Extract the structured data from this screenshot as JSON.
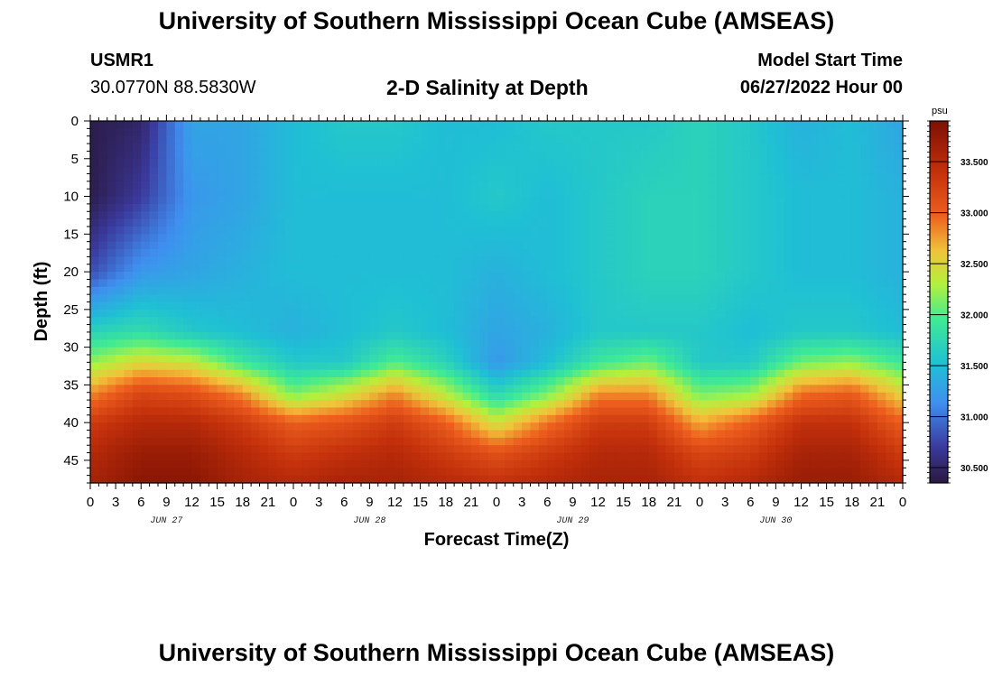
{
  "header": {
    "title": "University of Southern Mississippi Ocean Cube (AMSEAS)",
    "station_id": "USMR1",
    "coords": "30.0770N  88.5830W",
    "subtitle": "2-D Salinity at Depth",
    "model_start_label": "Model Start Time",
    "model_start_value": "06/27/2022 Hour 00"
  },
  "footer": {
    "title": "University of Southern Mississippi Ocean Cube (AMSEAS)"
  },
  "chart_data": {
    "type": "heatmap",
    "title": "2-D Salinity at Depth",
    "xlabel": "Forecast Time(Z)",
    "ylabel": "Depth (ft)",
    "x_unit": "hours",
    "xlim": [
      0,
      96
    ],
    "ylim": [
      0,
      48
    ],
    "y_inverted": true,
    "x_tick_labels": [
      "0",
      "3",
      "6",
      "9",
      "12",
      "15",
      "18",
      "21",
      "0",
      "3",
      "6",
      "9",
      "12",
      "15",
      "18",
      "21",
      "0",
      "3",
      "6",
      "9",
      "12",
      "15",
      "18",
      "21",
      "0",
      "3",
      "6",
      "9",
      "12",
      "15",
      "18",
      "21",
      "0"
    ],
    "y_ticks": [
      0,
      5,
      10,
      15,
      20,
      25,
      30,
      35,
      40,
      45
    ],
    "day_labels": [
      "JUN 27",
      "JUN 28",
      "JUN 29",
      "JUN 30"
    ],
    "colorbar": {
      "unit": "psu",
      "range": [
        30.35,
        33.9
      ],
      "ticks": [
        "30.500",
        "31.000",
        "31.500",
        "32.000",
        "32.500",
        "33.000",
        "33.500"
      ]
    },
    "grid": false,
    "times_hr": [
      0,
      6,
      12,
      18,
      24,
      30,
      36,
      42,
      48,
      54,
      60,
      66,
      72,
      78,
      84,
      90,
      96
    ],
    "depths_ft": [
      0,
      10,
      20,
      28,
      32,
      36,
      40,
      44,
      48
    ],
    "salinity_psu": [
      [
        30.4,
        30.5,
        31.3,
        31.3,
        31.5,
        31.6,
        31.6,
        31.5,
        31.5,
        31.6,
        31.6,
        31.6,
        31.7,
        31.6,
        31.4,
        31.5,
        31.3
      ],
      [
        30.4,
        30.7,
        31.2,
        31.3,
        31.5,
        31.5,
        31.5,
        31.5,
        31.6,
        31.5,
        31.6,
        31.7,
        31.7,
        31.6,
        31.5,
        31.5,
        31.4
      ],
      [
        30.8,
        31.2,
        31.3,
        31.4,
        31.5,
        31.5,
        31.5,
        31.5,
        31.4,
        31.5,
        31.6,
        31.7,
        31.7,
        31.6,
        31.5,
        31.5,
        31.4
      ],
      [
        31.7,
        31.8,
        31.6,
        31.5,
        31.4,
        31.5,
        31.6,
        31.5,
        31.3,
        31.4,
        31.6,
        31.6,
        31.6,
        31.5,
        31.6,
        31.6,
        31.5
      ],
      [
        32.2,
        32.5,
        32.4,
        31.9,
        31.6,
        31.6,
        32.0,
        31.7,
        31.2,
        31.5,
        31.9,
        32.1,
        31.6,
        31.6,
        32.1,
        32.2,
        31.9
      ],
      [
        32.8,
        33.2,
        33.1,
        32.8,
        32.1,
        32.4,
        32.8,
        32.3,
        31.7,
        32.1,
        32.8,
        32.8,
        32.1,
        32.2,
        32.9,
        33.0,
        32.5
      ],
      [
        33.3,
        33.5,
        33.5,
        33.3,
        33.0,
        33.1,
        33.3,
        33.0,
        32.4,
        32.9,
        33.3,
        33.3,
        32.7,
        33.0,
        33.4,
        33.4,
        33.0
      ],
      [
        33.5,
        33.7,
        33.7,
        33.5,
        33.3,
        33.4,
        33.5,
        33.3,
        33.1,
        33.3,
        33.5,
        33.5,
        33.2,
        33.3,
        33.6,
        33.6,
        33.3
      ],
      [
        33.6,
        33.8,
        33.8,
        33.6,
        33.5,
        33.6,
        33.6,
        33.5,
        33.4,
        33.5,
        33.6,
        33.6,
        33.4,
        33.5,
        33.7,
        33.7,
        33.5
      ]
    ]
  }
}
